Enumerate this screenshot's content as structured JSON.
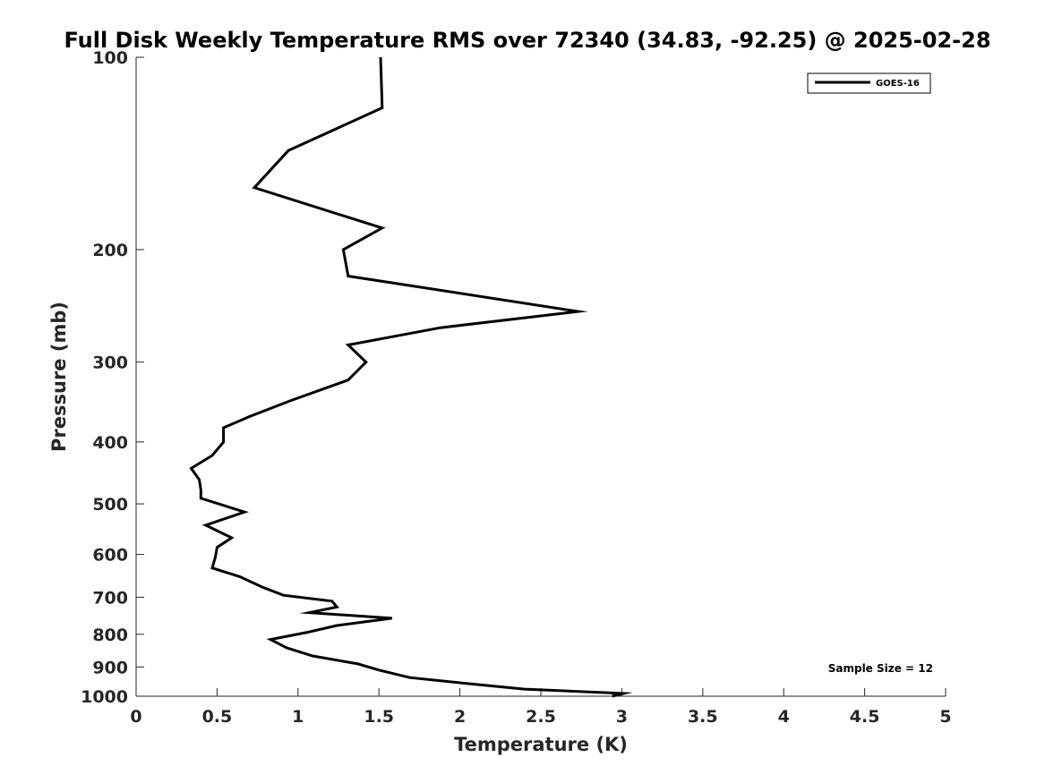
{
  "chart_data": {
    "type": "line",
    "title": "Full Disk Weekly Temperature RMS over 72340 (34.83, -92.25) @ 2025-02-28",
    "xlabel": "Temperature (K)",
    "ylabel": "Pressure (mb)",
    "xlim": [
      0,
      5
    ],
    "ylim": [
      100,
      1000
    ],
    "y_scale": "log",
    "y_reversed": true,
    "grid": false,
    "x_ticks": [
      0,
      0.5,
      1,
      1.5,
      2,
      2.5,
      3,
      3.5,
      4,
      4.5,
      5
    ],
    "x_tick_labels": [
      "0",
      "0.5",
      "1",
      "1.5",
      "2",
      "2.5",
      "3",
      "3.5",
      "4",
      "4.5",
      "5"
    ],
    "y_ticks": [
      100,
      200,
      300,
      400,
      500,
      600,
      700,
      800,
      900,
      1000
    ],
    "y_tick_labels": [
      "100",
      "200",
      "300",
      "400",
      "500",
      "600",
      "700",
      "800",
      "900",
      "1000"
    ],
    "legend_position": "top-right",
    "series": [
      {
        "name": "GOES-16",
        "color": "#000000",
        "points": [
          [
            1.51,
            100
          ],
          [
            1.52,
            120
          ],
          [
            0.94,
            140
          ],
          [
            0.73,
            160
          ],
          [
            1.52,
            185
          ],
          [
            1.28,
            200
          ],
          [
            1.31,
            220
          ],
          [
            2.73,
            250
          ],
          [
            1.88,
            265
          ],
          [
            1.31,
            282
          ],
          [
            1.42,
            300
          ],
          [
            1.31,
            320
          ],
          [
            0.95,
            345
          ],
          [
            0.7,
            365
          ],
          [
            0.54,
            380
          ],
          [
            0.54,
            400
          ],
          [
            0.47,
            420
          ],
          [
            0.34,
            440
          ],
          [
            0.39,
            458
          ],
          [
            0.4,
            475
          ],
          [
            0.4,
            490
          ],
          [
            0.67,
            515
          ],
          [
            0.43,
            540
          ],
          [
            0.59,
            565
          ],
          [
            0.5,
            585
          ],
          [
            0.49,
            605
          ],
          [
            0.47,
            630
          ],
          [
            0.64,
            650
          ],
          [
            0.78,
            675
          ],
          [
            0.91,
            695
          ],
          [
            1.21,
            710
          ],
          [
            1.24,
            725
          ],
          [
            1.07,
            740
          ],
          [
            1.58,
            755
          ],
          [
            1.24,
            775
          ],
          [
            1.05,
            795
          ],
          [
            0.83,
            815
          ],
          [
            0.93,
            840
          ],
          [
            1.09,
            865
          ],
          [
            1.37,
            890
          ],
          [
            1.5,
            910
          ],
          [
            1.69,
            935
          ],
          [
            2.04,
            955
          ],
          [
            2.4,
            975
          ],
          [
            3.01,
            990
          ],
          [
            2.94,
            1000
          ]
        ]
      }
    ],
    "annotation": "Sample Size = 12"
  }
}
